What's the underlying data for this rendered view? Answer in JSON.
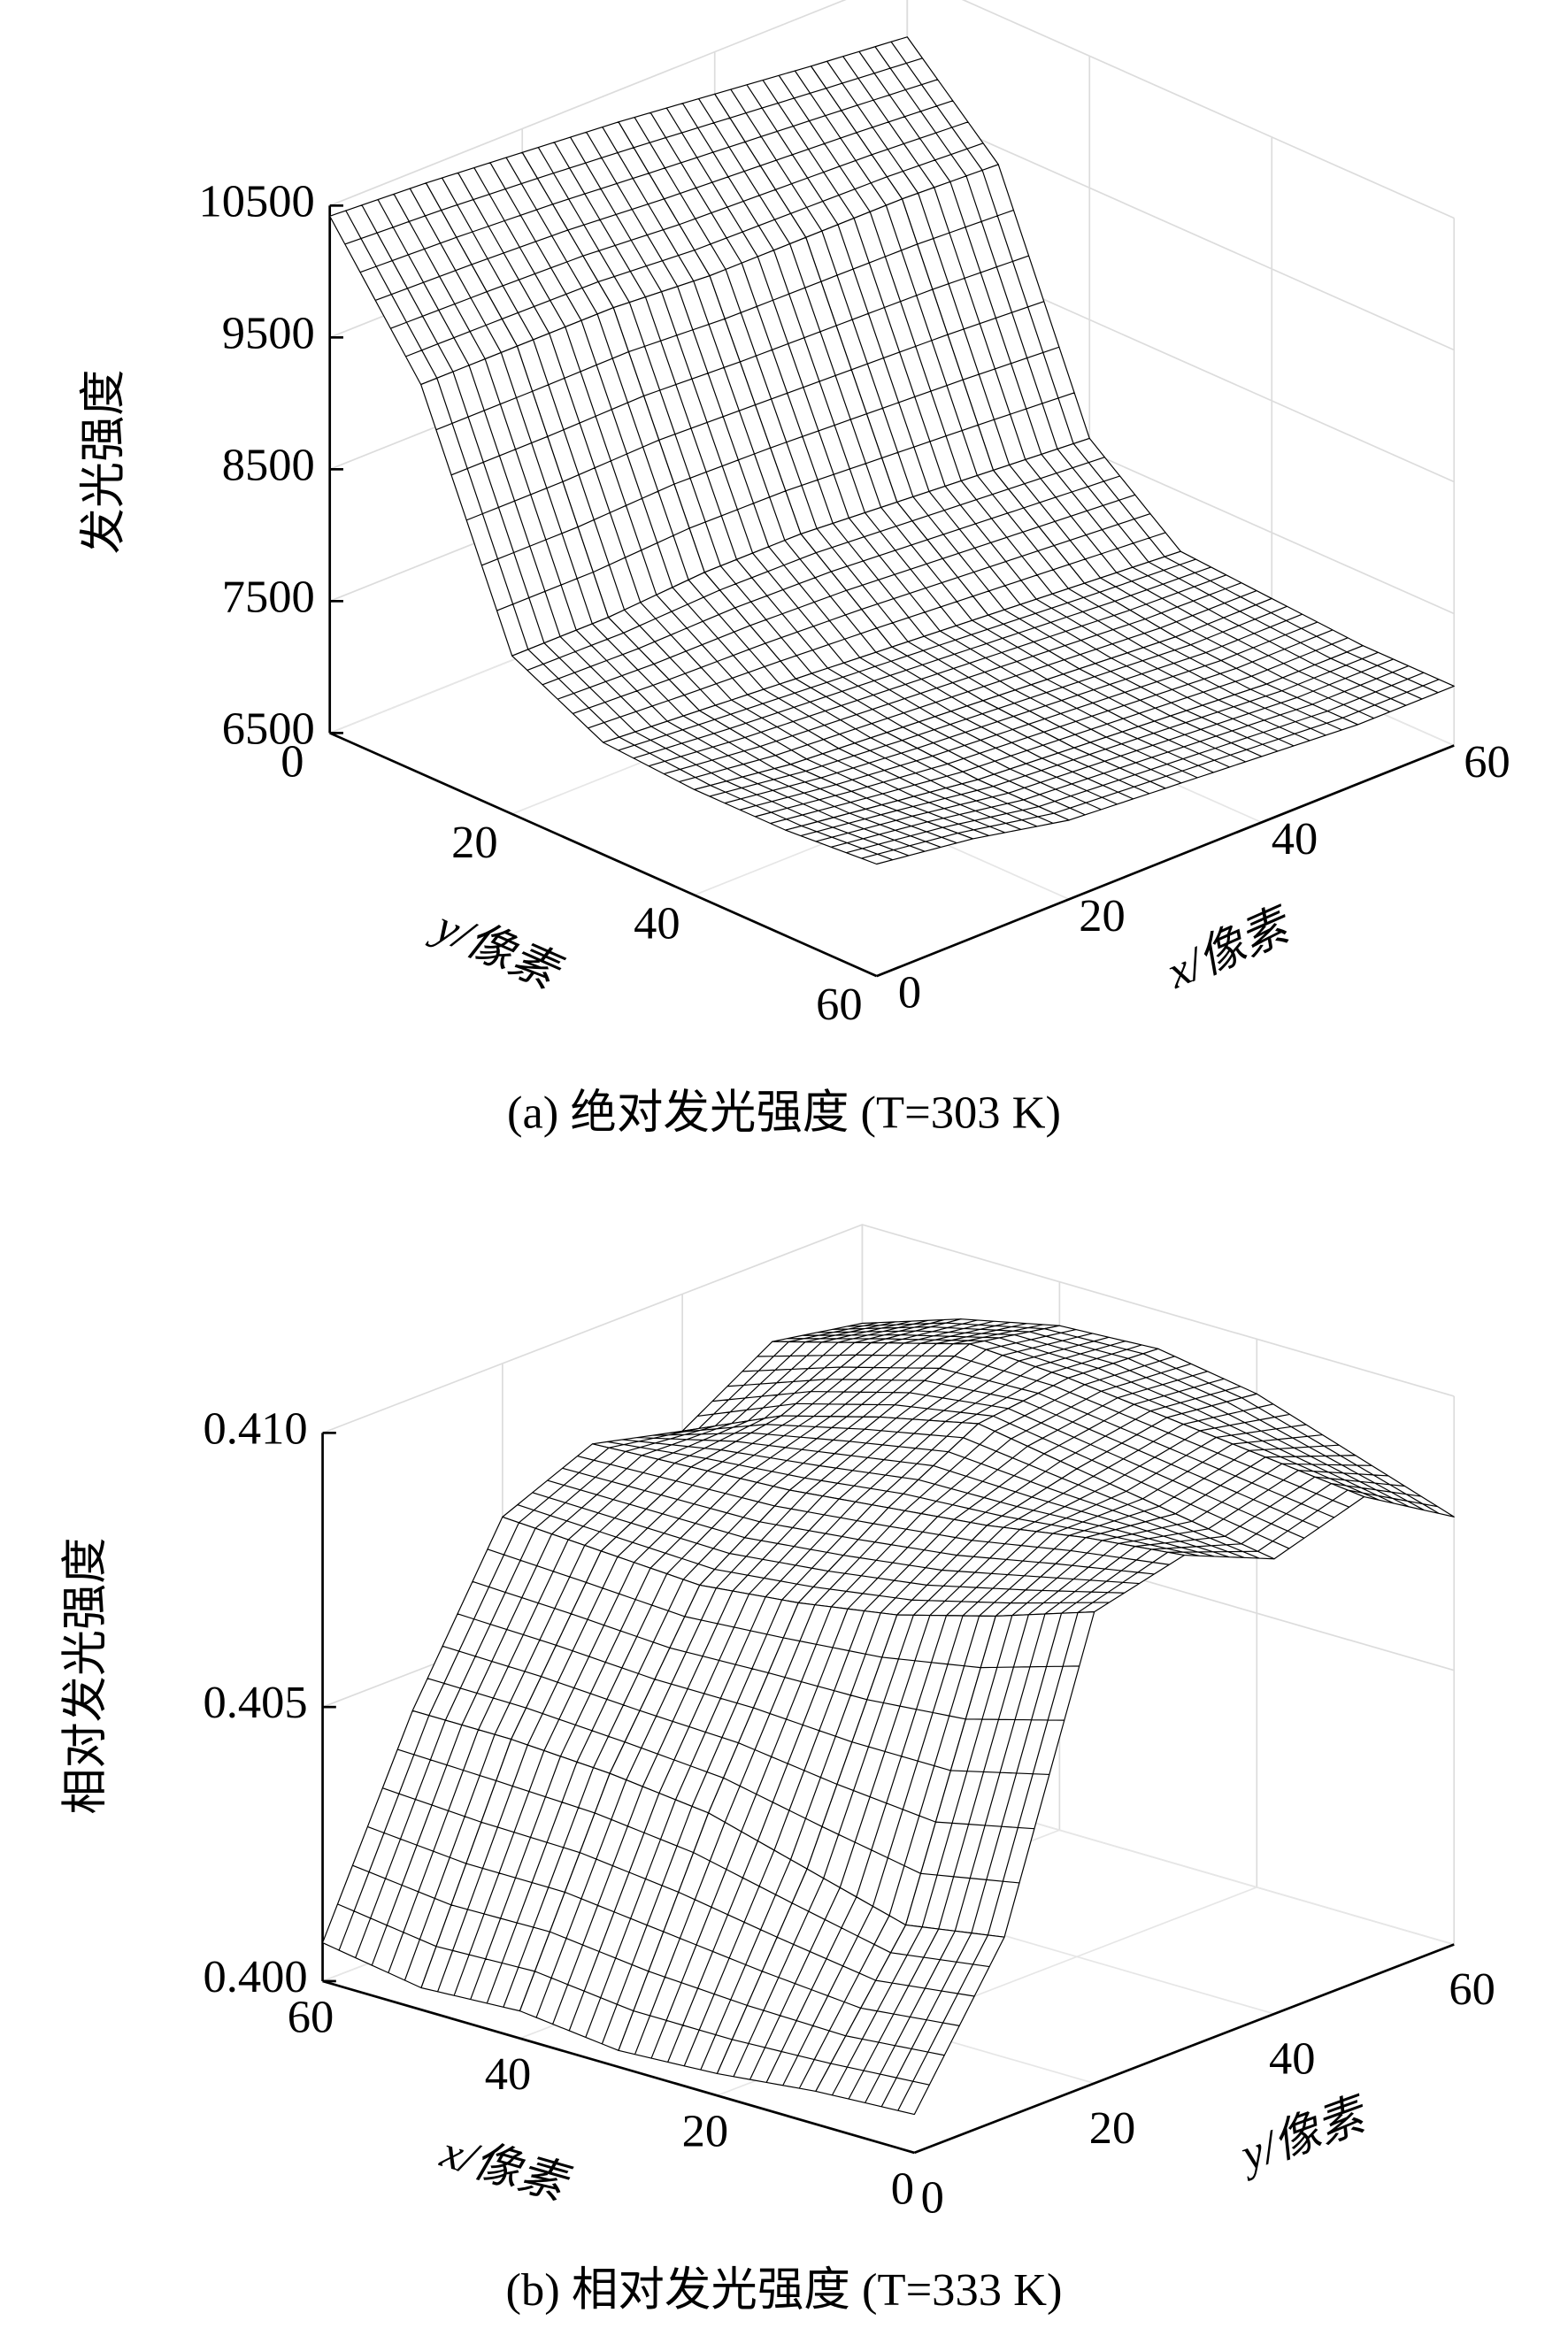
{
  "chart_data": [
    {
      "type": "surface",
      "caption": "(a) 绝对发光强度 (T=303 K)",
      "zlabel": "发光强度",
      "xlabel": "x/像素",
      "ylabel": "y/像素",
      "x": [
        0,
        10,
        20,
        30,
        40,
        50,
        60
      ],
      "y": [
        0,
        10,
        20,
        30,
        40,
        50,
        60
      ],
      "z": [
        [
          10420,
          10380,
          10320,
          10260,
          10180,
          10100,
          10030
        ],
        [
          9450,
          9450,
          9450,
          9400,
          9400,
          9400,
          9370
        ],
        [
          7700,
          7700,
          7750,
          7750,
          7700,
          7650,
          7600
        ],
        [
          7350,
          7300,
          7250,
          7200,
          7150,
          7100,
          7050
        ],
        [
          7300,
          7200,
          7150,
          7100,
          7050,
          7000,
          7000
        ],
        [
          7300,
          7200,
          7100,
          7050,
          7000,
          6950,
          6950
        ],
        [
          7350,
          7250,
          7100,
          7050,
          7000,
          6950,
          6950
        ]
      ],
      "xlim": [
        0,
        60
      ],
      "ylim": [
        0,
        60
      ],
      "zlim": [
        6500,
        10500
      ],
      "xticks": [
        0,
        20,
        40,
        60
      ],
      "yticks": [
        0,
        20,
        40,
        60
      ],
      "zticks": [
        6500,
        7500,
        8500,
        9500,
        10500
      ],
      "color": "#000000",
      "grid": true
    },
    {
      "type": "surface",
      "caption": "(b) 相对发光强度 (T=333 K)",
      "zlabel": "相对发光强度",
      "xlabel": "x/像素",
      "ylabel": "y/像素",
      "x": [
        0,
        10,
        20,
        30,
        40,
        50,
        60
      ],
      "y": [
        0,
        10,
        20,
        30,
        40,
        50,
        60
      ],
      "z": [
        [
          0.4007,
          0.4006,
          0.4004,
          0.4003,
          0.4005,
          0.4004,
          0.4007
        ],
        [
          0.4033,
          0.403,
          0.4035,
          0.404,
          0.4042,
          0.4043,
          0.4043
        ],
        [
          0.4086,
          0.408,
          0.4075,
          0.4072,
          0.407,
          0.4071,
          0.4072
        ],
        [
          0.409,
          0.4088,
          0.4085,
          0.4083,
          0.4081,
          0.408,
          0.4079
        ],
        [
          0.4083,
          0.4086,
          0.4089,
          0.4092,
          0.4088,
          0.4083,
          0.4075
        ],
        [
          0.4088,
          0.409,
          0.4092,
          0.4094,
          0.4095,
          0.409,
          0.4085
        ],
        [
          0.4078,
          0.4084,
          0.409,
          0.4093,
          0.4092,
          0.4088,
          0.4082
        ]
      ],
      "xlim": [
        0,
        60
      ],
      "ylim": [
        0,
        60
      ],
      "zlim": [
        0.4,
        0.41
      ],
      "xticks": [
        0,
        20,
        40,
        60
      ],
      "yticks": [
        0,
        20,
        40,
        60
      ],
      "zticks": [
        {
          "value": 0.4,
          "label": "0.400"
        },
        0.405,
        {
          "value": 0.41,
          "label": "0.410"
        }
      ],
      "color": "#000000",
      "grid": true
    }
  ]
}
